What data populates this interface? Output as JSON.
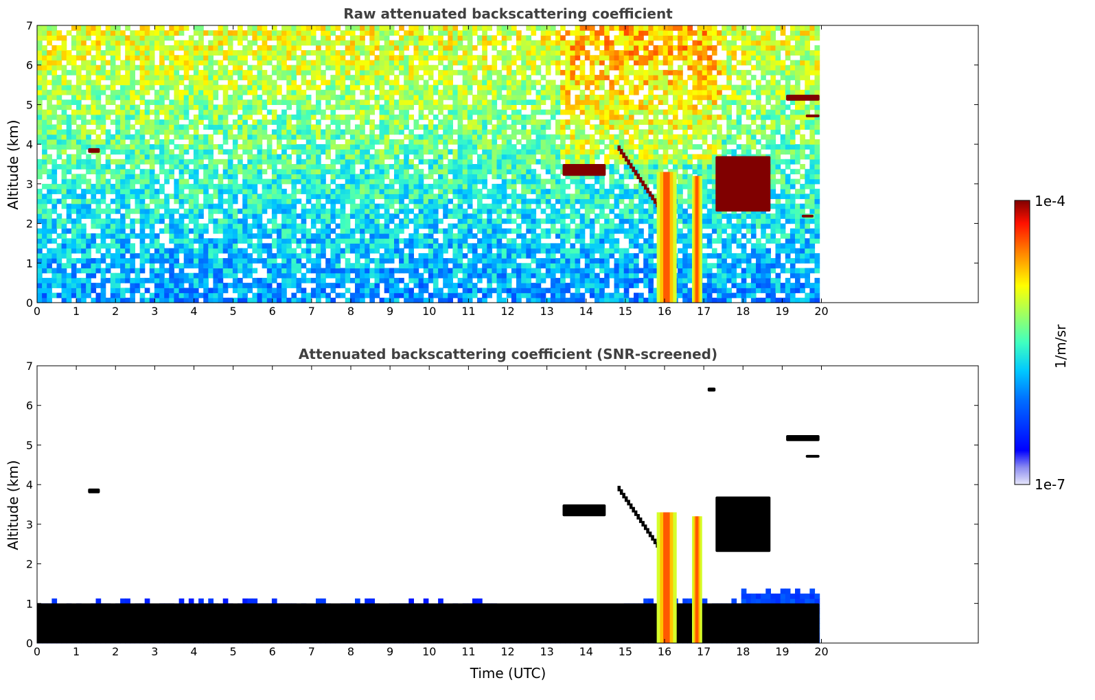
{
  "chart_data": [
    {
      "type": "heatmap",
      "title": "Raw attenuated backscattering coefficient",
      "xlabel": "",
      "ylabel": "Altitude (km)",
      "xlim": [
        0,
        24
      ],
      "ylim": [
        0,
        7
      ],
      "xticks": [
        "0",
        "1",
        "2",
        "3",
        "4",
        "5",
        "6",
        "7",
        "8",
        "9",
        "10",
        "11",
        "12",
        "13",
        "14",
        "15",
        "16",
        "17",
        "18",
        "19",
        "20"
      ],
      "yticks": [
        "0",
        "1",
        "2",
        "3",
        "4",
        "5",
        "6",
        "7"
      ],
      "data_extent_hours": [
        0,
        19.95
      ],
      "features": [
        {
          "name": "noisy background",
          "pattern": "increasing with altitude",
          "surface_level": "1e-6",
          "top_level": "1e-5"
        },
        {
          "name": "cloud",
          "t": [
            1.3,
            1.6
          ],
          "alt": [
            3.78,
            3.9
          ],
          "value": "1e-4"
        },
        {
          "name": "cloud layer",
          "t": [
            13.4,
            14.5
          ],
          "alt": [
            3.2,
            3.5
          ],
          "value": "1e-4"
        },
        {
          "name": "descending cloud",
          "t": [
            14.8,
            15.9
          ],
          "alt": [
            2.3,
            3.9
          ],
          "value": "1e-4"
        },
        {
          "name": "precipitation column",
          "t": [
            15.8,
            16.3
          ],
          "alt": [
            0,
            3.3
          ],
          "value": "3e-5"
        },
        {
          "name": "precipitation column",
          "t": [
            16.7,
            16.95
          ],
          "alt": [
            0,
            3.2
          ],
          "value": "3e-5"
        },
        {
          "name": "cloud",
          "t": [
            17.3,
            18.7
          ],
          "alt": [
            2.3,
            3.7
          ],
          "value": "1e-4"
        },
        {
          "name": "cloud",
          "t": [
            19.1,
            19.95
          ],
          "alt": [
            5.1,
            5.25
          ],
          "value": "1e-4"
        },
        {
          "name": "cloud",
          "t": [
            19.6,
            19.95
          ],
          "alt": [
            4.68,
            4.75
          ],
          "value": "1e-4"
        },
        {
          "name": "cloud",
          "t": [
            19.5,
            19.8
          ],
          "alt": [
            2.15,
            2.22
          ],
          "value": "1e-4"
        }
      ]
    },
    {
      "type": "heatmap",
      "title": "Attenuated backscattering coefficient (SNR-screened)",
      "xlabel": "Time (UTC)",
      "ylabel": "Altitude (km)",
      "xlim": [
        0,
        24
      ],
      "ylim": [
        0,
        7
      ],
      "xticks": [
        "0",
        "1",
        "2",
        "3",
        "4",
        "5",
        "6",
        "7",
        "8",
        "9",
        "10",
        "11",
        "12",
        "13",
        "14",
        "15",
        "16",
        "17",
        "18",
        "19",
        "20"
      ],
      "yticks": [
        "0",
        "1",
        "2",
        "3",
        "4",
        "5",
        "6",
        "7"
      ],
      "data_extent_hours": [
        0,
        19.95
      ],
      "features": [
        {
          "name": "boundary layer",
          "t": [
            0,
            19.95
          ],
          "alt": [
            0,
            1.0
          ],
          "value": "1e-6"
        },
        {
          "name": "cloud",
          "t": [
            1.3,
            1.6
          ],
          "alt": [
            3.78,
            3.9
          ],
          "value": "1e-4"
        },
        {
          "name": "cloud layer",
          "t": [
            13.4,
            14.5
          ],
          "alt": [
            3.2,
            3.5
          ],
          "value": "1e-4"
        },
        {
          "name": "descending cloud",
          "t": [
            14.8,
            15.9
          ],
          "alt": [
            2.3,
            3.9
          ],
          "value": "1e-4"
        },
        {
          "name": "precipitation column",
          "t": [
            15.8,
            16.3
          ],
          "alt": [
            0,
            3.3
          ],
          "value": "3e-5"
        },
        {
          "name": "precipitation column",
          "t": [
            16.7,
            16.95
          ],
          "alt": [
            0,
            3.2
          ],
          "value": "3e-5"
        },
        {
          "name": "cloud",
          "t": [
            17.3,
            18.7
          ],
          "alt": [
            2.3,
            3.7
          ],
          "value": "1e-4"
        },
        {
          "name": "cloud",
          "t": [
            19.1,
            19.95
          ],
          "alt": [
            5.1,
            5.25
          ],
          "value": "1e-4"
        },
        {
          "name": "cloud",
          "t": [
            19.6,
            19.95
          ],
          "alt": [
            4.68,
            4.75
          ],
          "value": "1e-4"
        },
        {
          "name": "cloud",
          "t": [
            17.1,
            17.3
          ],
          "alt": [
            6.35,
            6.45
          ],
          "value": "1e-4"
        }
      ]
    }
  ],
  "colorbar": {
    "max_label": "1e-4",
    "min_label": "1e-7",
    "label": "1/m/sr",
    "colormap": "jet",
    "scale": "log"
  }
}
